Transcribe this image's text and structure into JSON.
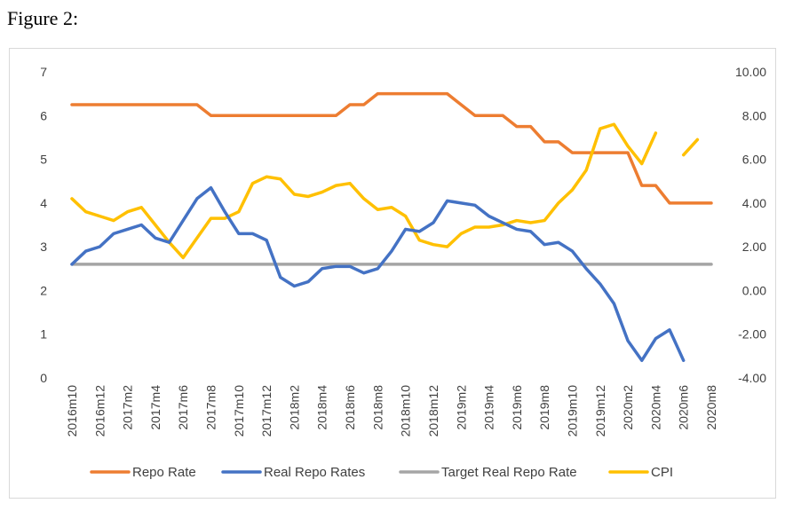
{
  "figure_label": "Figure 2:",
  "chart_data": {
    "type": "line",
    "title": "",
    "x": [
      "2016m10",
      "2016m11",
      "2016m12",
      "2017m1",
      "2017m2",
      "2017m3",
      "2017m4",
      "2017m5",
      "2017m6",
      "2017m7",
      "2017m8",
      "2017m9",
      "2017m10",
      "2017m11",
      "2017m12",
      "2018m1",
      "2018m2",
      "2018m3",
      "2018m4",
      "2018m5",
      "2018m6",
      "2018m7",
      "2018m8",
      "2018m9",
      "2018m10",
      "2018m11",
      "2018m12",
      "2019m1",
      "2019m2",
      "2019m3",
      "2019m4",
      "2019m5",
      "2019m6",
      "2019m7",
      "2019m8",
      "2019m9",
      "2019m10",
      "2019m11",
      "2019m12",
      "2020m1",
      "2020m2",
      "2020m3",
      "2020m4",
      "2020m5",
      "2020m6",
      "2020m7",
      "2020m8"
    ],
    "x_tick_labels": [
      "2016m10",
      "2016m12",
      "2017m2",
      "2017m4",
      "2017m6",
      "2017m8",
      "2017m10",
      "2017m12",
      "2018m2",
      "2018m4",
      "2018m6",
      "2018m8",
      "2018m10",
      "2018m12",
      "2019m2",
      "2019m4",
      "2019m6",
      "2019m8",
      "2019m10",
      "2019m12",
      "2020m2",
      "2020m4",
      "2020m6",
      "2020m8"
    ],
    "y_left": {
      "ylim": [
        0,
        7
      ],
      "ticks": [
        "0",
        "1",
        "2",
        "3",
        "4",
        "5",
        "6",
        "7"
      ]
    },
    "y_right": {
      "ylim": [
        -4,
        10
      ],
      "ticks": [
        "-4.00",
        "-2.00",
        "0.00",
        "2.00",
        "4.00",
        "6.00",
        "8.00",
        "10.00"
      ]
    },
    "grid": false,
    "legend_position": "bottom",
    "series": [
      {
        "name": "Repo Rate",
        "axis": "left",
        "color": "#ED7D31",
        "values": [
          6.25,
          6.25,
          6.25,
          6.25,
          6.25,
          6.25,
          6.25,
          6.25,
          6.25,
          6.25,
          6.0,
          6.0,
          6.0,
          6.0,
          6.0,
          6.0,
          6.0,
          6.0,
          6.0,
          6.0,
          6.25,
          6.25,
          6.5,
          6.5,
          6.5,
          6.5,
          6.5,
          6.5,
          6.25,
          6.0,
          6.0,
          6.0,
          5.75,
          5.75,
          5.4,
          5.4,
          5.15,
          5.15,
          5.15,
          5.15,
          5.15,
          4.4,
          4.4,
          4.0,
          4.0,
          4.0,
          4.0
        ]
      },
      {
        "name": "Real Repo Rates",
        "axis": "right",
        "color": "#4472C4",
        "values": [
          1.2,
          1.8,
          2.0,
          2.6,
          2.8,
          3.0,
          2.4,
          2.2,
          3.2,
          4.2,
          4.7,
          3.6,
          2.6,
          2.6,
          2.3,
          0.6,
          0.2,
          0.4,
          1.0,
          1.1,
          1.1,
          0.8,
          1.0,
          1.8,
          2.8,
          2.7,
          3.1,
          4.1,
          4.0,
          3.9,
          3.4,
          3.1,
          2.8,
          2.7,
          2.1,
          2.2,
          1.8,
          1.0,
          0.3,
          -0.6,
          -2.3,
          -3.2,
          -2.2,
          -1.8,
          -3.2,
          null,
          null
        ]
      },
      {
        "name": "Target Real Repo Rate",
        "axis": "left",
        "color": "#A5A5A5",
        "values": [
          2.6,
          2.6,
          2.6,
          2.6,
          2.6,
          2.6,
          2.6,
          2.6,
          2.6,
          2.6,
          2.6,
          2.6,
          2.6,
          2.6,
          2.6,
          2.6,
          2.6,
          2.6,
          2.6,
          2.6,
          2.6,
          2.6,
          2.6,
          2.6,
          2.6,
          2.6,
          2.6,
          2.6,
          2.6,
          2.6,
          2.6,
          2.6,
          2.6,
          2.6,
          2.6,
          2.6,
          2.6,
          2.6,
          2.6,
          2.6,
          2.6,
          2.6,
          2.6,
          2.6,
          2.6,
          2.6,
          2.6
        ]
      },
      {
        "name": "CPI",
        "axis": "right",
        "color": "#FFC000",
        "values": [
          4.2,
          3.6,
          3.4,
          3.2,
          3.6,
          3.8,
          3.0,
          2.2,
          1.5,
          2.4,
          3.3,
          3.3,
          3.6,
          4.9,
          5.2,
          5.1,
          4.4,
          4.3,
          4.5,
          4.8,
          4.9,
          4.2,
          3.7,
          3.8,
          3.4,
          2.3,
          2.1,
          2.0,
          2.6,
          2.9,
          2.9,
          3.0,
          3.2,
          3.1,
          3.2,
          4.0,
          4.6,
          5.5,
          7.4,
          7.6,
          6.6,
          5.8,
          7.2,
          null,
          6.2,
          6.9,
          null
        ]
      }
    ]
  }
}
